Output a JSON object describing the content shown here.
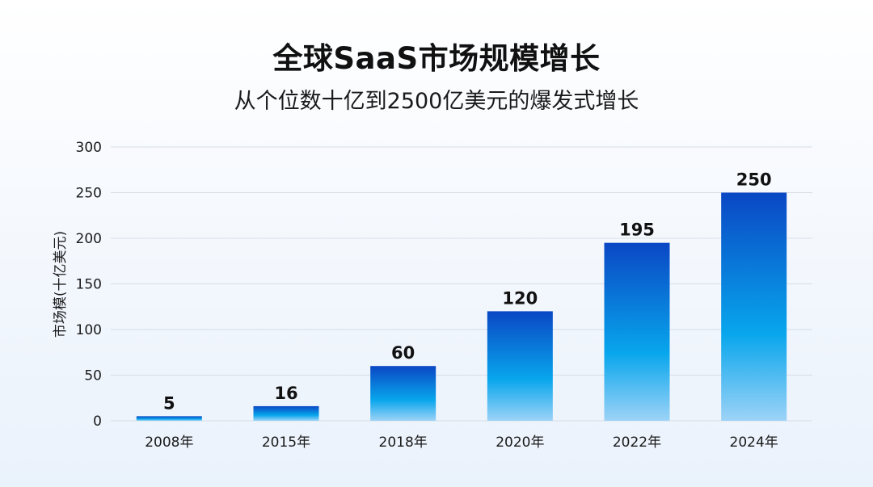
{
  "header": {
    "title": "全球SaaS市场规模增长",
    "subtitle": "从个位数十亿到2500亿美元的爆发式增长"
  },
  "colors": {
    "bar_top": "#0a47c4",
    "bar_mid": "#08a6ec",
    "bar_bottom": "#9dd3f7",
    "grid": "#d7dde6",
    "text": "#1a1a1a"
  },
  "chart_data": {
    "type": "bar",
    "title": "全球SaaS市场规模增长",
    "subtitle": "从个位数十亿到2500亿美元的爆发式增长",
    "xlabel": "",
    "ylabel": "市场模(十亿美元)",
    "categories": [
      "2008年",
      "2015年",
      "2018年",
      "2020年",
      "2022年",
      "2024年"
    ],
    "values": [
      5,
      16,
      60,
      120,
      195,
      250
    ],
    "data_labels": [
      "5",
      "16",
      "60",
      "120",
      "195",
      "250"
    ],
    "ylim": [
      0,
      300
    ],
    "yticks": [
      "0",
      "50",
      "100",
      "150",
      "200",
      "250",
      "300"
    ],
    "grid": true,
    "legend": "none"
  }
}
